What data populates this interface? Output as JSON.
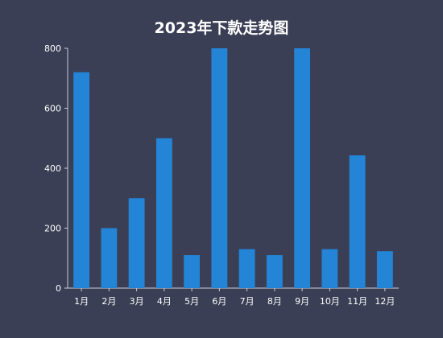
{
  "chart_data": {
    "type": "bar",
    "title": "2023年下款走势图",
    "categories": [
      "1月",
      "2月",
      "3月",
      "4月",
      "5月",
      "6月",
      "7月",
      "8月",
      "9月",
      "10月",
      "11月",
      "12月"
    ],
    "values": [
      720,
      200,
      300,
      500,
      110,
      800,
      130,
      110,
      800,
      130,
      443,
      123
    ],
    "ylim": [
      0,
      800
    ],
    "yticks": [
      0,
      200,
      400,
      600,
      800
    ],
    "xlabel": "",
    "ylabel": "",
    "grid": false,
    "bar_color": "#2484d6",
    "axis_color": "#c9cdd8",
    "text_color": "#ffffff"
  }
}
